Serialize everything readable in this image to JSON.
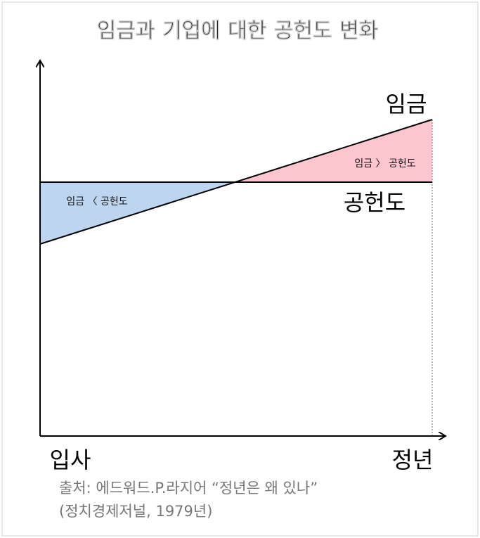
{
  "header": {
    "title": "임금과 기업에 대한 공헌도 변화"
  },
  "diagram": {
    "wage_label": "임금",
    "contribution_label": "공헌도",
    "wage_lt_contribution": "임금 〈 공헌도",
    "wage_gt_contribution": "임금 〉 공헌도",
    "x_start_label": "입사",
    "x_end_label": "정년"
  },
  "source": {
    "line1": "출처: 에드워드.P.라지어 “정년은 왜 있나”",
    "line2": "(정치경제저널, 1979년)"
  }
}
